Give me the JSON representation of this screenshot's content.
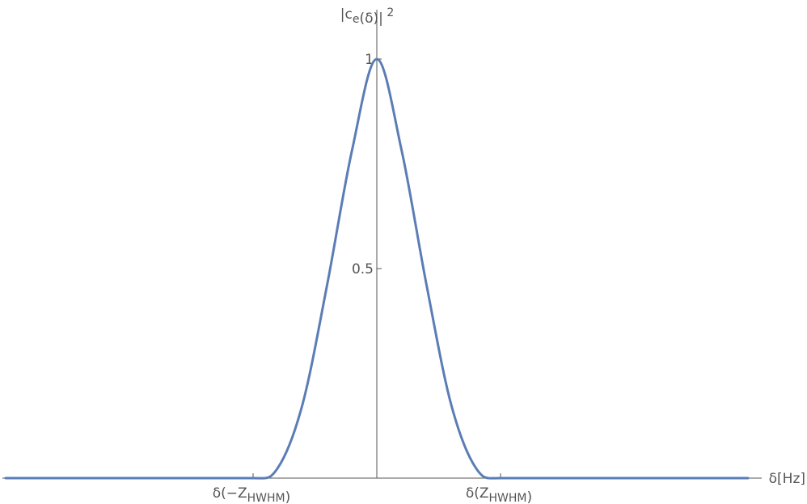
{
  "chart_data": {
    "type": "line",
    "title": "",
    "xlabel": "δ[Hz]",
    "ylabel": "|c_e(δ)|^2",
    "ylim": [
      0,
      1
    ],
    "x_ticks": [
      {
        "x": -1,
        "label": "δ(−Z_HWHM)"
      },
      {
        "x": 1,
        "label": "δ(Z_HWHM)"
      }
    ],
    "y_ticks": [
      {
        "y": 0.5,
        "label": "0.5"
      },
      {
        "y": 1,
        "label": "1"
      }
    ],
    "series": [
      {
        "color": "#5b7db5",
        "x": [
          -3.0,
          -2.5,
          -2.0,
          -1.5,
          -1.0,
          -0.8,
          -0.6,
          -0.4,
          -0.2,
          0.0,
          0.2,
          0.4,
          0.6,
          0.8,
          1.0,
          1.5,
          2.0,
          2.5,
          3.0
        ],
        "y": [
          0,
          0,
          0,
          0,
          0,
          0.0245,
          0.1767,
          0.4638,
          0.7828,
          1.0,
          0.7828,
          0.4638,
          0.1767,
          0.0245,
          0,
          0,
          0,
          0,
          0
        ]
      }
    ],
    "grid": false,
    "legend": "none"
  }
}
